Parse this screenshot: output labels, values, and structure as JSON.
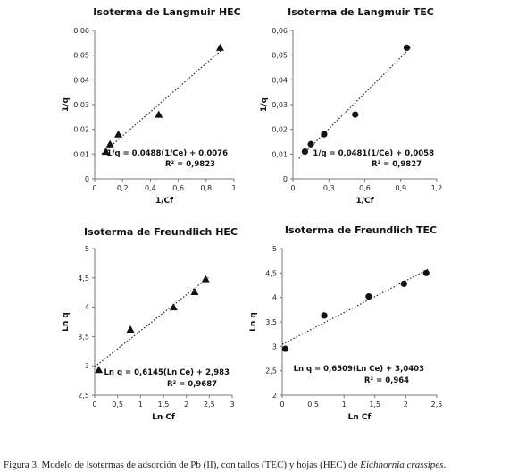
{
  "caption": {
    "text": "Figura 3. Modelo de isotermas de adsorción de Pb (II), con tallos (TEC) y hojas (HEC) de ",
    "species": "Eichhornia crassipes",
    "end": "."
  },
  "chart_data": [
    {
      "type": "scatter",
      "title": "Isoterma de Langmuir HEC",
      "xlabel": "1/Cf",
      "ylabel": "1/q",
      "xlim": [
        0,
        1
      ],
      "ylim": [
        0,
        0.06
      ],
      "xticks": [
        "0",
        "0,2",
        "0,4",
        "0,6",
        "0,8",
        "1"
      ],
      "yticks": [
        "0",
        "0,01",
        "0,02",
        "0,03",
        "0,04",
        "0,05",
        "0,06"
      ],
      "marker": "triangle",
      "series": [
        {
          "x": [
            0.08,
            0.11,
            0.17,
            0.46,
            0.9
          ],
          "y": [
            0.011,
            0.014,
            0.018,
            0.026,
            0.053
          ]
        }
      ],
      "equation": "1/q = 0,0488(1/Ce) + 0,0076",
      "r2": "R² = 0,9823",
      "trendline": {
        "slope": 0.0488,
        "intercept": 0.0076,
        "x_from": 0.05,
        "x_to": 0.92
      }
    },
    {
      "type": "scatter",
      "title": "Isoterma de Langmuir TEC",
      "xlabel": "1/Cf",
      "ylabel": "1/q",
      "xlim": [
        0,
        1.2
      ],
      "ylim": [
        0,
        0.06
      ],
      "xticks": [
        "0",
        "0,3",
        "0,6",
        "0,9",
        "1,2"
      ],
      "yticks": [
        "0",
        "0,01",
        "0,02",
        "0,03",
        "0,04",
        "0,05",
        "0,06"
      ],
      "marker": "circle",
      "series": [
        {
          "x": [
            0.1,
            0.15,
            0.26,
            0.52,
            0.95
          ],
          "y": [
            0.011,
            0.014,
            0.018,
            0.026,
            0.053
          ]
        }
      ],
      "equation": "1/q = 0,0481(1/Ce) + 0,0058",
      "r2": "R² = 0,9827",
      "trendline": {
        "slope": 0.0481,
        "intercept": 0.0058,
        "x_from": 0.05,
        "x_to": 0.98
      }
    },
    {
      "type": "scatter",
      "title": "Isoterma de Freundlich HEC",
      "xlabel": "Ln Cf",
      "ylabel": "Ln q",
      "xlim": [
        0,
        3
      ],
      "ylim": [
        2.5,
        5
      ],
      "xticks": [
        "0",
        "0,5",
        "1",
        "1,5",
        "2",
        "2,5",
        "3"
      ],
      "yticks": [
        "2,5",
        "3",
        "3,5",
        "4",
        "4,5",
        "5"
      ],
      "marker": "triangle",
      "series": [
        {
          "x": [
            0.09,
            0.78,
            1.72,
            2.18,
            2.42
          ],
          "y": [
            2.93,
            3.62,
            4.0,
            4.26,
            4.48
          ]
        }
      ],
      "equation": "Ln q = 0,6145(Ln Ce) + 2,983",
      "r2": "R² = 0,9687",
      "trendline": {
        "slope": 0.6145,
        "intercept": 2.983,
        "x_from": 0.0,
        "x_to": 2.48
      }
    },
    {
      "type": "scatter",
      "title": "Isoterma de Freundlich TEC",
      "xlabel": "Ln Cf",
      "ylabel": "Ln q",
      "xlim": [
        0,
        2.5
      ],
      "ylim": [
        2,
        5
      ],
      "xticks": [
        "0",
        "0,5",
        "1",
        "1,5",
        "2",
        "2,5"
      ],
      "yticks": [
        "2",
        "2,5",
        "3",
        "3,5",
        "4",
        "4,5",
        "5"
      ],
      "marker": "circle",
      "series": [
        {
          "x": [
            0.05,
            0.68,
            1.4,
            1.97,
            2.33
          ],
          "y": [
            2.95,
            3.63,
            4.02,
            4.28,
            4.5
          ]
        }
      ],
      "equation": "Ln q = 0,6509(Ln Ce) + 3,0403",
      "r2": "R² = 0,964",
      "trendline": {
        "slope": 0.6509,
        "intercept": 3.0403,
        "x_from": 0.0,
        "x_to": 2.38
      }
    }
  ]
}
